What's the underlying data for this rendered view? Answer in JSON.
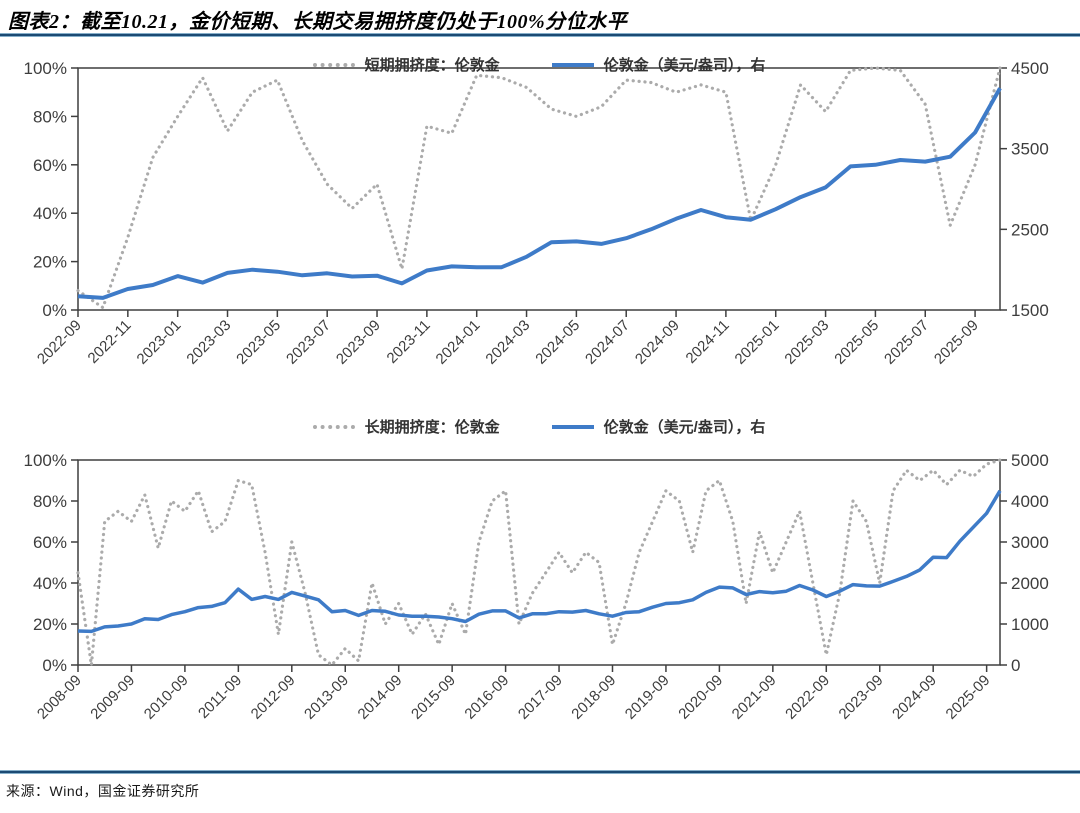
{
  "page": {
    "title": "图表2：截至10.21，金价短期、长期交易拥挤度仍处于100%分位水平",
    "source": "来源：Wind，国金证券研究所"
  },
  "colors": {
    "crowding_gray": "#ababab",
    "gold_blue": "#3e7bc8",
    "axis": "#3f3f3f",
    "header_rule": "#1b4a73"
  },
  "chart_data": [
    {
      "type": "line",
      "title": "短期拥挤度与伦敦金价",
      "legend": [
        {
          "label": "短期拥挤度：伦敦金",
          "style": "dotted",
          "color": "#ababab"
        },
        {
          "label": "伦敦金（美元/盎司），右",
          "style": "solid",
          "color": "#3e7bc8"
        }
      ],
      "left_axis": {
        "min": 0,
        "max": 100,
        "ticks": [
          "0%",
          "20%",
          "40%",
          "60%",
          "80%",
          "100%"
        ]
      },
      "right_axis": {
        "min": 1500,
        "max": 4500,
        "ticks": [
          "1500",
          "2500",
          "3500",
          "4500"
        ]
      },
      "x": [
        "2022-09",
        "2022-10",
        "2022-11",
        "2022-12",
        "2023-01",
        "2023-02",
        "2023-03",
        "2023-04",
        "2023-05",
        "2023-06",
        "2023-07",
        "2023-08",
        "2023-09",
        "2023-10",
        "2023-11",
        "2023-12",
        "2024-01",
        "2024-02",
        "2024-03",
        "2024-04",
        "2024-05",
        "2024-06",
        "2024-07",
        "2024-08",
        "2024-09",
        "2024-10",
        "2024-11",
        "2024-12",
        "2025-01",
        "2025-02",
        "2025-03",
        "2025-04",
        "2025-05",
        "2025-06",
        "2025-07",
        "2025-08",
        "2025-09",
        "2025-10"
      ],
      "x_tick_labels": [
        "2022-09",
        "2022-11",
        "2023-01",
        "2023-03",
        "2023-05",
        "2023-07",
        "2023-09",
        "2023-11",
        "2024-01",
        "2024-03",
        "2024-05",
        "2024-07",
        "2024-09",
        "2024-11",
        "2025-01",
        "2025-03",
        "2025-05",
        "2025-07",
        "2025-09"
      ],
      "series": [
        {
          "name": "短期拥挤度：伦敦金",
          "axis": "left",
          "style": "dotted",
          "color": "#ababab",
          "width": 3.2,
          "values": [
            8,
            1,
            30,
            63,
            80,
            96,
            74,
            90,
            95,
            70,
            52,
            42,
            52,
            17,
            76,
            73,
            97,
            96,
            92,
            83,
            80,
            84,
            95,
            94,
            90,
            93,
            90,
            37,
            60,
            93,
            82,
            99,
            100,
            99,
            85,
            35,
            60,
            100
          ]
        },
        {
          "name": "伦敦金（美元/盎司），右",
          "axis": "right",
          "style": "solid",
          "color": "#3e7bc8",
          "width": 4,
          "values": [
            1670,
            1650,
            1760,
            1810,
            1920,
            1840,
            1960,
            2000,
            1975,
            1930,
            1955,
            1915,
            1925,
            1830,
            1990,
            2040,
            2030,
            2030,
            2160,
            2340,
            2350,
            2320,
            2390,
            2500,
            2630,
            2740,
            2650,
            2620,
            2750,
            2900,
            3020,
            3280,
            3300,
            3360,
            3340,
            3400,
            3700,
            4250
          ]
        }
      ]
    },
    {
      "type": "line",
      "title": "长期拥挤度与伦敦金价",
      "legend": [
        {
          "label": "长期拥挤度：伦敦金",
          "style": "dotted",
          "color": "#ababab"
        },
        {
          "label": "伦敦金（美元/盎司），右",
          "style": "solid",
          "color": "#3e7bc8"
        }
      ],
      "left_axis": {
        "min": 0,
        "max": 100,
        "ticks": [
          "0%",
          "20%",
          "40%",
          "60%",
          "80%",
          "100%"
        ]
      },
      "right_axis": {
        "min": 0,
        "max": 5000,
        "ticks": [
          "0",
          "1000",
          "2000",
          "3000",
          "4000",
          "5000"
        ]
      },
      "x": [
        "2008-09",
        "2008-12",
        "2009-03",
        "2009-06",
        "2009-09",
        "2009-12",
        "2010-03",
        "2010-06",
        "2010-09",
        "2010-12",
        "2011-03",
        "2011-06",
        "2011-09",
        "2011-12",
        "2012-03",
        "2012-06",
        "2012-09",
        "2012-12",
        "2013-03",
        "2013-06",
        "2013-09",
        "2013-12",
        "2014-03",
        "2014-06",
        "2014-09",
        "2014-12",
        "2015-03",
        "2015-06",
        "2015-09",
        "2015-12",
        "2016-03",
        "2016-06",
        "2016-09",
        "2016-12",
        "2017-03",
        "2017-06",
        "2017-09",
        "2017-12",
        "2018-03",
        "2018-06",
        "2018-09",
        "2018-12",
        "2019-03",
        "2019-06",
        "2019-09",
        "2019-12",
        "2020-03",
        "2020-06",
        "2020-09",
        "2020-12",
        "2021-03",
        "2021-06",
        "2021-09",
        "2021-12",
        "2022-03",
        "2022-06",
        "2022-09",
        "2022-12",
        "2023-03",
        "2023-06",
        "2023-09",
        "2023-12",
        "2024-03",
        "2024-06",
        "2024-09",
        "2024-12",
        "2025-03",
        "2025-06",
        "2025-09",
        "2025-10"
      ],
      "x_tick_labels": [
        "2008-09",
        "2009-09",
        "2010-09",
        "2011-09",
        "2012-09",
        "2013-09",
        "2014-09",
        "2015-09",
        "2016-09",
        "2017-09",
        "2018-09",
        "2019-09",
        "2020-09",
        "2021-09",
        "2022-09",
        "2023-09",
        "2024-09",
        "2025-09"
      ],
      "series": [
        {
          "name": "长期拥挤度：伦敦金",
          "axis": "left",
          "style": "dotted",
          "color": "#ababab",
          "width": 3.2,
          "values": [
            45,
            0,
            70,
            75,
            70,
            83,
            57,
            80,
            75,
            85,
            65,
            70,
            90,
            88,
            55,
            15,
            60,
            35,
            5,
            0,
            8,
            2,
            40,
            20,
            30,
            15,
            25,
            10,
            30,
            15,
            60,
            80,
            85,
            20,
            35,
            45,
            55,
            45,
            55,
            50,
            10,
            30,
            55,
            70,
            85,
            80,
            55,
            85,
            90,
            70,
            30,
            65,
            45,
            60,
            75,
            40,
            5,
            35,
            80,
            70,
            40,
            85,
            95,
            90,
            95,
            88,
            95,
            92,
            98,
            100
          ]
        },
        {
          "name": "伦敦金（美元/盎司），右",
          "axis": "right",
          "style": "solid",
          "color": "#3e7bc8",
          "width": 3.5,
          "values": [
            830,
            820,
            930,
            950,
            1000,
            1130,
            1110,
            1230,
            1300,
            1400,
            1430,
            1520,
            1850,
            1600,
            1670,
            1600,
            1770,
            1680,
            1590,
            1300,
            1330,
            1210,
            1330,
            1310,
            1220,
            1190,
            1190,
            1170,
            1130,
            1060,
            1240,
            1320,
            1320,
            1150,
            1250,
            1250,
            1300,
            1290,
            1330,
            1250,
            1190,
            1280,
            1300,
            1410,
            1500,
            1520,
            1590,
            1770,
            1900,
            1880,
            1720,
            1790,
            1760,
            1800,
            1940,
            1830,
            1670,
            1800,
            1960,
            1930,
            1925,
            2040,
            2160,
            2320,
            2630,
            2620,
            3020,
            3360,
            3700,
            4250
          ]
        }
      ]
    }
  ]
}
